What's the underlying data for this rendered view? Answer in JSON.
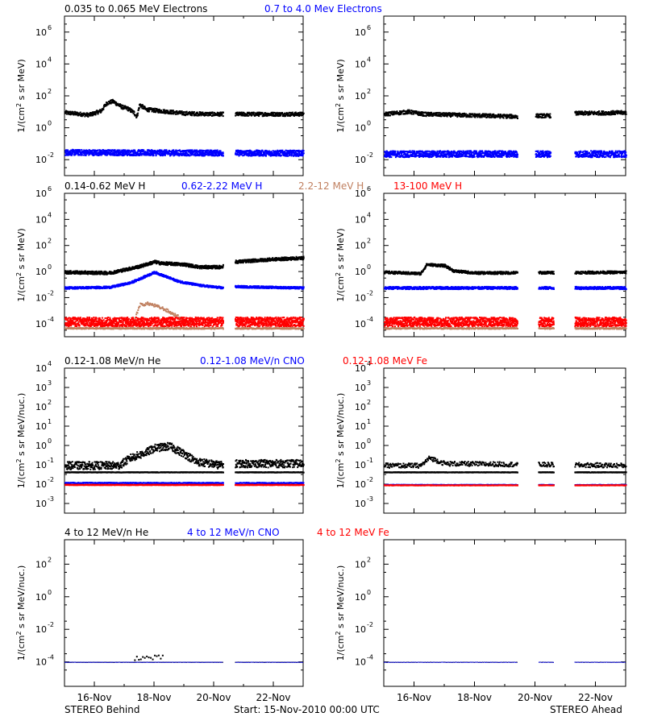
{
  "colors": {
    "axis": "#000000",
    "black": "#000000",
    "blue": "#0000ff",
    "tan": "#c08060",
    "red": "#ff0000"
  },
  "footer": {
    "left": "STEREO Behind",
    "center": "Start: 15-Nov-2010 00:00 UTC",
    "right": "STEREO Ahead"
  },
  "x_ticks": [
    "16-Nov",
    "18-Nov",
    "20-Nov",
    "22-Nov"
  ],
  "chart_data": [
    {
      "type": "scatter",
      "panel": "electrons",
      "legend": [
        {
          "label": "0.035 to 0.065 MeV Electrons",
          "color": "black"
        },
        {
          "label": "0.7 to 4.0 Mev Electrons",
          "color": "blue"
        }
      ],
      "ylabel_main": "1/(cm",
      "ylabel_sup": "2",
      "ylabel_rest": " s sr MeV)",
      "yscale": "log",
      "ylim_exp": [
        -3,
        7
      ],
      "yticks": [
        {
          "base": "10",
          "exp": "6",
          "e": 6
        },
        {
          "base": "10",
          "exp": "4",
          "e": 4
        },
        {
          "base": "10",
          "exp": "2",
          "e": 2
        },
        {
          "base": "10",
          "exp": "0",
          "e": 0
        },
        {
          "base": "10",
          "exp": "-2",
          "e": -2
        }
      ],
      "xlim_days": [
        15,
        23
      ],
      "series": {
        "behind": [
          {
            "color": "black",
            "values": [
              [
                15.0,
                1.0
              ],
              [
                15.5,
                0.9
              ],
              [
                16.0,
                1.0
              ],
              [
                16.3,
                1.5
              ],
              [
                16.6,
                1.7
              ],
              [
                16.9,
                1.4
              ],
              [
                17.2,
                1.2
              ],
              [
                17.4,
                0.8
              ],
              [
                17.6,
                1.5
              ],
              [
                17.8,
                1.3
              ],
              [
                18.2,
                1.2
              ],
              [
                19.0,
                1.05
              ],
              [
                20.0,
                0.95
              ],
              [
                20.3,
                1.0
              ]
            ],
            "gaps": [
              [
                20.3,
                20.7
              ]
            ],
            "after": [
              [
                20.7,
                1.0
              ],
              [
                22.3,
                1.0
              ]
            ],
            "scatter": 0.12
          },
          {
            "color": "blue",
            "values": [
              [
                15.0,
                -1.5
              ],
              [
                20.3,
                -1.6
              ]
            ],
            "gaps": [
              [
                20.3,
                20.7
              ]
            ],
            "after": [
              [
                20.7,
                -1.6
              ],
              [
                22.3,
                -1.6
              ]
            ],
            "scatter": 0.15
          }
        ],
        "ahead": [
          {
            "color": "black",
            "values": [
              [
                15.0,
                0.9
              ],
              [
                15.7,
                1.1
              ],
              [
                16.2,
                0.95
              ],
              [
                19.0,
                0.85
              ],
              [
                19.4,
                0.8
              ]
            ],
            "gaps": [
              [
                19.4,
                20.0
              ],
              [
                20.5,
                21.3
              ]
            ],
            "after": [
              [
                20.0,
                0.85
              ],
              [
                20.5,
                0.85
              ]
            ],
            "after2": [
              [
                21.3,
                1.0
              ],
              [
                22.3,
                1.0
              ]
            ],
            "scatter": 0.12
          },
          {
            "color": "blue",
            "values": [
              [
                15.0,
                -1.6
              ],
              [
                19.4,
                -1.6
              ]
            ],
            "gaps": [
              [
                19.4,
                20.0
              ],
              [
                20.5,
                21.3
              ]
            ],
            "after": [
              [
                20.0,
                -1.6
              ],
              [
                20.5,
                -1.6
              ]
            ],
            "after2": [
              [
                21.3,
                -1.6
              ],
              [
                22.3,
                -1.6
              ]
            ],
            "scatter": 0.18
          }
        ]
      }
    },
    {
      "type": "scatter",
      "panel": "protons",
      "legend": [
        {
          "label": "0.14-0.62 MeV H",
          "color": "black"
        },
        {
          "label": "0.62-2.22 MeV H",
          "color": "blue"
        },
        {
          "label": "2.2-12 MeV H",
          "color": "tan"
        },
        {
          "label": "13-100 MeV H",
          "color": "red"
        }
      ],
      "ylabel_main": "1/(cm",
      "ylabel_sup": "2",
      "ylabel_rest": " s sr MeV)",
      "yscale": "log",
      "ylim_exp": [
        -5,
        6
      ],
      "yticks": [
        {
          "base": "10",
          "exp": "6",
          "e": 6
        },
        {
          "base": "10",
          "exp": "4",
          "e": 4
        },
        {
          "base": "10",
          "exp": "2",
          "e": 2
        },
        {
          "base": "10",
          "exp": "0",
          "e": 0
        },
        {
          "base": "10",
          "exp": "-2",
          "e": -2
        },
        {
          "base": "10",
          "exp": "-4",
          "e": -4
        }
      ],
      "xlim_days": [
        15,
        23
      ]
    },
    {
      "type": "scatter",
      "panel": "heavy_low",
      "legend": [
        {
          "label": "0.12-1.08 MeV/n He",
          "color": "black"
        },
        {
          "label": "0.12-1.08 MeV/n CNO",
          "color": "blue"
        },
        {
          "label": "0.12-1.08 MeV Fe",
          "color": "red"
        }
      ],
      "ylabel_main": "1/(cm",
      "ylabel_sup": "2",
      "ylabel_rest": " s sr MeV/nuc.)",
      "yscale": "log",
      "ylim_exp": [
        -3.5,
        4
      ],
      "yticks": [
        {
          "base": "10",
          "exp": "4",
          "e": 4
        },
        {
          "base": "10",
          "exp": "3",
          "e": 3
        },
        {
          "base": "10",
          "exp": "2",
          "e": 2
        },
        {
          "base": "10",
          "exp": "1",
          "e": 1
        },
        {
          "base": "10",
          "exp": "0",
          "e": 0
        },
        {
          "base": "10",
          "exp": "-1",
          "e": -1
        },
        {
          "base": "10",
          "exp": "-2",
          "e": -2
        },
        {
          "base": "10",
          "exp": "-3",
          "e": -3
        }
      ],
      "xlim_days": [
        15,
        23
      ]
    },
    {
      "type": "scatter",
      "panel": "heavy_high",
      "legend": [
        {
          "label": "4 to 12 MeV/n He",
          "color": "black"
        },
        {
          "label": "4 to 12 MeV/n CNO",
          "color": "blue"
        },
        {
          "label": "4 to 12 MeV Fe",
          "color": "red"
        }
      ],
      "ylabel_main": "1/(cm",
      "ylabel_sup": "2",
      "ylabel_rest": " s sr MeV/nuc.)",
      "yscale": "log",
      "ylim_exp": [
        -5.5,
        3.5
      ],
      "yticks": [
        {
          "base": "10",
          "exp": "2",
          "e": 2
        },
        {
          "base": "10",
          "exp": "0",
          "e": 0
        },
        {
          "base": "10",
          "exp": "-2",
          "e": -2
        },
        {
          "base": "10",
          "exp": "-4",
          "e": -4
        }
      ],
      "xlim_days": [
        15,
        23
      ]
    }
  ]
}
